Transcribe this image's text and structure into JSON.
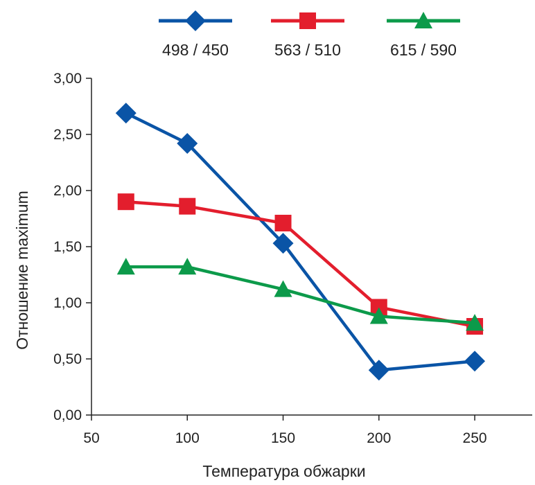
{
  "chart_data": {
    "type": "line",
    "title": "",
    "xlabel": "Температура обжарки",
    "ylabel": "Отношение maximum",
    "xlim": [
      50,
      280
    ],
    "ylim": [
      0,
      3
    ],
    "x_ticks": [
      50,
      100,
      150,
      200,
      250
    ],
    "x_tick_labels": [
      "50",
      "100",
      "150",
      "200",
      "250"
    ],
    "y_ticks": [
      0,
      0.5,
      1,
      1.5,
      2,
      2.5,
      3
    ],
    "y_tick_labels": [
      "0,00",
      "0,50",
      "1,00",
      "1,50",
      "2,00",
      "2,50",
      "3,00"
    ],
    "grid": false,
    "legend_position": "top",
    "x": [
      68,
      100,
      150,
      200,
      250
    ],
    "series": [
      {
        "name": "498 / 450",
        "color": "#0a54a6",
        "marker": "diamond",
        "values": [
          2.69,
          2.42,
          1.53,
          0.4,
          0.48
        ]
      },
      {
        "name": "563 / 510",
        "color": "#e31e2d",
        "marker": "square",
        "values": [
          1.9,
          1.86,
          1.71,
          0.96,
          0.79
        ]
      },
      {
        "name": "615 / 590",
        "color": "#0c9a4a",
        "marker": "triangle",
        "values": [
          1.32,
          1.32,
          1.12,
          0.88,
          0.82
        ]
      }
    ]
  }
}
